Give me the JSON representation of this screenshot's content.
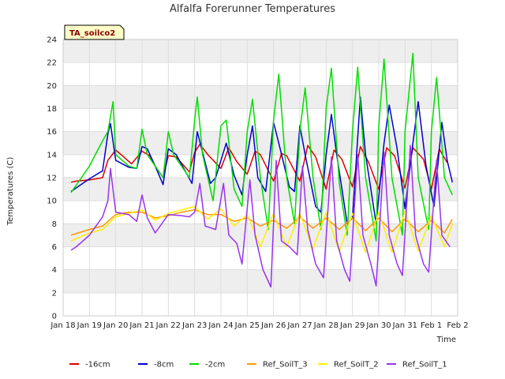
{
  "chart_data": {
    "type": "line",
    "title": "Alfalfa Forerunner Temperatures",
    "xlabel": "Time",
    "ylabel": "Temperatures (C)",
    "badge": "TA_soilco2",
    "xlim": [
      0,
      15
    ],
    "ylim": [
      0,
      24
    ],
    "yticks": [
      0,
      2,
      4,
      6,
      8,
      10,
      12,
      14,
      16,
      18,
      20,
      22,
      24
    ],
    "xtick_labels": [
      "Jan 18",
      "Jan 19",
      "Jan 20",
      "Jan 21",
      "Jan 22",
      "Jan 23",
      "Jan 24",
      "Jan 25",
      "Jan 26",
      "Jan 27",
      "Jan 28",
      "Jan 29",
      "Jan 30",
      "Jan 31",
      "Feb 1",
      "Feb 2"
    ],
    "grid": true,
    "legend_position": "bottom",
    "series": [
      {
        "name": "-16cm",
        "color": "#e00000",
        "points": [
          [
            0.3,
            11.6
          ],
          [
            0.5,
            11.7
          ],
          [
            1.0,
            11.8
          ],
          [
            1.5,
            12.0
          ],
          [
            1.7,
            13.5
          ],
          [
            2.0,
            14.4
          ],
          [
            2.3,
            13.8
          ],
          [
            2.6,
            13.2
          ],
          [
            3.0,
            14.3
          ],
          [
            3.3,
            13.9
          ],
          [
            3.5,
            13.0
          ],
          [
            3.8,
            12.0
          ],
          [
            4.0,
            13.9
          ],
          [
            4.3,
            13.8
          ],
          [
            4.8,
            12.5
          ],
          [
            5.0,
            14.2
          ],
          [
            5.2,
            14.9
          ],
          [
            5.5,
            14.0
          ],
          [
            6.0,
            12.8
          ],
          [
            6.3,
            14.6
          ],
          [
            6.6,
            13.4
          ],
          [
            7.0,
            12.3
          ],
          [
            7.3,
            14.3
          ],
          [
            7.5,
            14.0
          ],
          [
            8.0,
            11.7
          ],
          [
            8.3,
            14.1
          ],
          [
            8.5,
            13.9
          ],
          [
            9.0,
            11.7
          ],
          [
            9.3,
            14.8
          ],
          [
            9.6,
            13.8
          ],
          [
            10.0,
            11.0
          ],
          [
            10.3,
            14.4
          ],
          [
            10.6,
            13.6
          ],
          [
            11.0,
            11.2
          ],
          [
            11.3,
            14.7
          ],
          [
            11.6,
            13.4
          ],
          [
            12.0,
            11.0
          ],
          [
            12.3,
            14.6
          ],
          [
            12.6,
            13.9
          ],
          [
            13.0,
            11.1
          ],
          [
            13.3,
            14.6
          ],
          [
            13.7,
            13.6
          ],
          [
            14.0,
            11.0
          ],
          [
            14.3,
            14.5
          ],
          [
            14.6,
            13.3
          ]
        ]
      },
      {
        "name": "-8cm",
        "color": "#0000cc",
        "points": [
          [
            0.3,
            10.8
          ],
          [
            1.0,
            11.9
          ],
          [
            1.5,
            12.6
          ],
          [
            1.7,
            15.8
          ],
          [
            1.8,
            16.7
          ],
          [
            2.0,
            13.5
          ],
          [
            2.5,
            12.9
          ],
          [
            2.8,
            12.8
          ],
          [
            3.0,
            14.7
          ],
          [
            3.2,
            14.5
          ],
          [
            3.5,
            13.0
          ],
          [
            3.8,
            11.4
          ],
          [
            4.0,
            14.5
          ],
          [
            4.3,
            14.0
          ],
          [
            4.9,
            11.5
          ],
          [
            5.1,
            16.0
          ],
          [
            5.3,
            14.2
          ],
          [
            5.6,
            11.5
          ],
          [
            5.8,
            12.0
          ],
          [
            6.2,
            15.0
          ],
          [
            6.5,
            12.2
          ],
          [
            6.8,
            10.5
          ],
          [
            7.0,
            14.0
          ],
          [
            7.2,
            16.5
          ],
          [
            7.4,
            12.0
          ],
          [
            7.7,
            10.8
          ],
          [
            8.0,
            16.8
          ],
          [
            8.2,
            15.0
          ],
          [
            8.6,
            11.2
          ],
          [
            8.8,
            10.8
          ],
          [
            9.0,
            16.5
          ],
          [
            9.2,
            14.0
          ],
          [
            9.6,
            9.5
          ],
          [
            9.8,
            9.0
          ],
          [
            10.0,
            14.0
          ],
          [
            10.2,
            17.5
          ],
          [
            10.4,
            14.0
          ],
          [
            10.8,
            8.0
          ],
          [
            11.0,
            8.5
          ],
          [
            11.3,
            19.0
          ],
          [
            11.5,
            14.0
          ],
          [
            11.9,
            8.0
          ],
          [
            12.2,
            15.0
          ],
          [
            12.4,
            18.3
          ],
          [
            12.7,
            14.5
          ],
          [
            13.0,
            9.3
          ],
          [
            13.3,
            15.0
          ],
          [
            13.5,
            18.6
          ],
          [
            13.8,
            13.0
          ],
          [
            14.1,
            9.5
          ],
          [
            14.4,
            16.8
          ],
          [
            14.6,
            13.5
          ],
          [
            14.8,
            11.6
          ]
        ]
      },
      {
        "name": "-2cm",
        "color": "#00dd00",
        "points": [
          [
            0.3,
            10.7
          ],
          [
            1.0,
            13.0
          ],
          [
            1.5,
            15.2
          ],
          [
            1.7,
            16.0
          ],
          [
            1.9,
            18.6
          ],
          [
            2.0,
            14.0
          ],
          [
            2.5,
            13.0
          ],
          [
            2.8,
            12.8
          ],
          [
            3.0,
            16.2
          ],
          [
            3.2,
            14.0
          ],
          [
            3.5,
            13.0
          ],
          [
            3.8,
            12.0
          ],
          [
            4.0,
            16.0
          ],
          [
            4.2,
            14.0
          ],
          [
            4.8,
            12.0
          ],
          [
            5.0,
            17.0
          ],
          [
            5.1,
            19.0
          ],
          [
            5.3,
            14.0
          ],
          [
            5.7,
            10.0
          ],
          [
            6.0,
            16.5
          ],
          [
            6.2,
            17.0
          ],
          [
            6.5,
            11.0
          ],
          [
            6.8,
            9.5
          ],
          [
            7.0,
            16.0
          ],
          [
            7.2,
            18.8
          ],
          [
            7.5,
            12.0
          ],
          [
            7.8,
            7.5
          ],
          [
            8.0,
            17.0
          ],
          [
            8.2,
            21.0
          ],
          [
            8.5,
            12.0
          ],
          [
            8.8,
            8.0
          ],
          [
            9.0,
            16.0
          ],
          [
            9.2,
            19.8
          ],
          [
            9.5,
            12.0
          ],
          [
            9.8,
            7.5
          ],
          [
            10.0,
            18.0
          ],
          [
            10.2,
            21.5
          ],
          [
            10.5,
            11.5
          ],
          [
            10.8,
            7.0
          ],
          [
            11.0,
            16.0
          ],
          [
            11.2,
            21.6
          ],
          [
            11.5,
            12.0
          ],
          [
            11.9,
            6.5
          ],
          [
            12.0,
            16.5
          ],
          [
            12.2,
            22.3
          ],
          [
            12.5,
            12.0
          ],
          [
            12.9,
            7.0
          ],
          [
            13.0,
            16.0
          ],
          [
            13.3,
            22.8
          ],
          [
            13.5,
            12.0
          ],
          [
            13.9,
            7.5
          ],
          [
            14.0,
            16.0
          ],
          [
            14.2,
            20.7
          ],
          [
            14.5,
            12.0
          ],
          [
            14.8,
            10.5
          ]
        ]
      },
      {
        "name": "Ref_SoilT_3",
        "color": "#ff9900",
        "points": [
          [
            0.3,
            7.0
          ],
          [
            1.0,
            7.5
          ],
          [
            1.5,
            7.8
          ],
          [
            2.0,
            8.8
          ],
          [
            2.5,
            9.0
          ],
          [
            3.0,
            9.0
          ],
          [
            3.5,
            8.5
          ],
          [
            4.0,
            8.7
          ],
          [
            4.5,
            9.0
          ],
          [
            5.0,
            9.2
          ],
          [
            5.5,
            8.8
          ],
          [
            6.0,
            8.8
          ],
          [
            6.5,
            8.2
          ],
          [
            7.0,
            8.5
          ],
          [
            7.5,
            7.8
          ],
          [
            8.0,
            8.3
          ],
          [
            8.5,
            7.6
          ],
          [
            9.0,
            8.6
          ],
          [
            9.5,
            7.6
          ],
          [
            10.0,
            8.5
          ],
          [
            10.5,
            7.5
          ],
          [
            11.0,
            8.5
          ],
          [
            11.5,
            7.4
          ],
          [
            12.0,
            8.5
          ],
          [
            12.5,
            7.3
          ],
          [
            13.0,
            8.4
          ],
          [
            13.5,
            7.3
          ],
          [
            14.0,
            8.3
          ],
          [
            14.5,
            7.2
          ],
          [
            14.8,
            8.4
          ]
        ]
      },
      {
        "name": "Ref_SoilT_2",
        "color": "#ffee00",
        "points": [
          [
            0.3,
            6.5
          ],
          [
            1.0,
            7.2
          ],
          [
            1.5,
            7.5
          ],
          [
            2.0,
            8.6
          ],
          [
            2.5,
            8.9
          ],
          [
            3.0,
            9.2
          ],
          [
            3.5,
            8.3
          ],
          [
            4.0,
            8.9
          ],
          [
            4.5,
            9.2
          ],
          [
            5.0,
            9.5
          ],
          [
            5.5,
            8.4
          ],
          [
            6.0,
            9.3
          ],
          [
            6.5,
            7.8
          ],
          [
            7.0,
            8.8
          ],
          [
            7.5,
            6.0
          ],
          [
            8.0,
            8.9
          ],
          [
            8.5,
            6.0
          ],
          [
            9.0,
            8.9
          ],
          [
            9.5,
            5.8
          ],
          [
            10.0,
            9.0
          ],
          [
            10.5,
            5.6
          ],
          [
            11.0,
            8.9
          ],
          [
            11.5,
            5.5
          ],
          [
            12.0,
            9.0
          ],
          [
            12.5,
            5.5
          ],
          [
            13.0,
            9.1
          ],
          [
            13.5,
            5.6
          ],
          [
            14.0,
            8.7
          ],
          [
            14.5,
            6.0
          ],
          [
            14.8,
            8.0
          ]
        ]
      },
      {
        "name": "Ref_SoilT_1",
        "color": "#9933ee",
        "points": [
          [
            0.3,
            5.7
          ],
          [
            0.5,
            6.0
          ],
          [
            1.0,
            7.0
          ],
          [
            1.5,
            8.6
          ],
          [
            1.7,
            10.0
          ],
          [
            1.8,
            12.8
          ],
          [
            2.0,
            9.0
          ],
          [
            2.5,
            8.8
          ],
          [
            2.8,
            8.2
          ],
          [
            3.0,
            10.5
          ],
          [
            3.2,
            8.5
          ],
          [
            3.5,
            7.2
          ],
          [
            4.0,
            8.8
          ],
          [
            4.5,
            8.7
          ],
          [
            4.8,
            8.6
          ],
          [
            5.0,
            9.0
          ],
          [
            5.2,
            11.5
          ],
          [
            5.4,
            7.8
          ],
          [
            5.8,
            7.5
          ],
          [
            6.1,
            11.5
          ],
          [
            6.3,
            7.0
          ],
          [
            6.6,
            6.3
          ],
          [
            6.8,
            4.5
          ],
          [
            7.1,
            11.8
          ],
          [
            7.3,
            7.0
          ],
          [
            7.6,
            4.0
          ],
          [
            7.9,
            2.5
          ],
          [
            8.1,
            13.5
          ],
          [
            8.3,
            6.5
          ],
          [
            8.6,
            6.0
          ],
          [
            8.9,
            5.3
          ],
          [
            9.1,
            13.0
          ],
          [
            9.3,
            7.5
          ],
          [
            9.6,
            4.5
          ],
          [
            9.9,
            3.3
          ],
          [
            10.2,
            13.8
          ],
          [
            10.4,
            6.5
          ],
          [
            10.7,
            4.0
          ],
          [
            10.9,
            3.0
          ],
          [
            11.2,
            14.0
          ],
          [
            11.4,
            7.0
          ],
          [
            11.7,
            4.5
          ],
          [
            11.9,
            2.6
          ],
          [
            12.2,
            14.2
          ],
          [
            12.4,
            7.0
          ],
          [
            12.7,
            4.5
          ],
          [
            12.9,
            3.5
          ],
          [
            13.2,
            14.8
          ],
          [
            13.4,
            7.0
          ],
          [
            13.7,
            4.5
          ],
          [
            13.9,
            3.8
          ],
          [
            14.2,
            13.5
          ],
          [
            14.4,
            7.0
          ],
          [
            14.7,
            6.0
          ]
        ]
      }
    ]
  }
}
